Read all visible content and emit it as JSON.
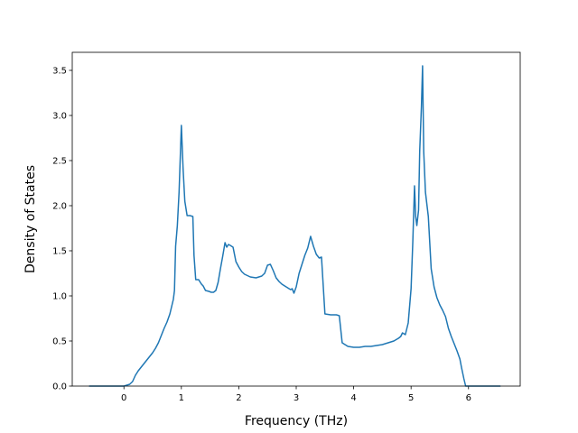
{
  "chart_data": {
    "type": "line",
    "title": "",
    "xlabel": "Frequency (THz)",
    "ylabel": "Density of States",
    "xlim": [
      -0.9,
      6.9
    ],
    "ylim": [
      0.0,
      3.7
    ],
    "xticks": [
      0,
      1,
      2,
      3,
      4,
      5,
      6
    ],
    "xtick_labels": [
      "0",
      "1",
      "2",
      "3",
      "4",
      "5",
      "6"
    ],
    "yticks": [
      0.0,
      0.5,
      1.0,
      1.5,
      2.0,
      2.5,
      3.0,
      3.5
    ],
    "ytick_labels": [
      "0.0",
      "0.5",
      "1.0",
      "1.5",
      "2.0",
      "2.5",
      "3.0",
      "3.5"
    ],
    "grid": false,
    "legend": "none",
    "series": [
      {
        "color": "#1f77b4",
        "x": [
          -0.6,
          -0.2,
          0.0,
          0.1,
          0.15,
          0.2,
          0.25,
          0.3,
          0.4,
          0.5,
          0.55,
          0.6,
          0.65,
          0.7,
          0.75,
          0.8,
          0.83,
          0.86,
          0.88,
          0.9,
          0.93,
          0.96,
          1.0,
          1.03,
          1.06,
          1.1,
          1.15,
          1.2,
          1.22,
          1.25,
          1.3,
          1.35,
          1.38,
          1.42,
          1.48,
          1.52,
          1.56,
          1.6,
          1.64,
          1.68,
          1.72,
          1.76,
          1.79,
          1.82,
          1.85,
          1.9,
          1.95,
          2.0,
          2.05,
          2.1,
          2.2,
          2.3,
          2.4,
          2.45,
          2.5,
          2.55,
          2.6,
          2.65,
          2.7,
          2.75,
          2.8,
          2.85,
          2.9,
          2.93,
          2.96,
          3.0,
          3.05,
          3.1,
          3.15,
          3.2,
          3.25,
          3.3,
          3.35,
          3.4,
          3.44,
          3.5,
          3.6,
          3.7,
          3.75,
          3.8,
          3.9,
          4.0,
          4.1,
          4.2,
          4.3,
          4.4,
          4.5,
          4.6,
          4.7,
          4.78,
          4.82,
          4.85,
          4.9,
          4.95,
          5.0,
          5.03,
          5.06,
          5.08,
          5.1,
          5.13,
          5.15,
          5.18,
          5.2,
          5.22,
          5.25,
          5.3,
          5.35,
          5.4,
          5.45,
          5.5,
          5.55,
          5.6,
          5.65,
          5.7,
          5.75,
          5.8,
          5.85,
          5.88,
          5.92,
          5.95,
          6.0,
          6.3,
          6.55
        ],
        "y": [
          0.0,
          0.0,
          0.0,
          0.02,
          0.05,
          0.12,
          0.17,
          0.21,
          0.29,
          0.37,
          0.42,
          0.48,
          0.56,
          0.64,
          0.71,
          0.8,
          0.88,
          0.96,
          1.06,
          1.55,
          1.78,
          2.15,
          2.89,
          2.41,
          2.05,
          1.89,
          1.89,
          1.88,
          1.45,
          1.18,
          1.18,
          1.13,
          1.11,
          1.06,
          1.05,
          1.04,
          1.04,
          1.06,
          1.15,
          1.3,
          1.44,
          1.59,
          1.54,
          1.57,
          1.56,
          1.54,
          1.38,
          1.32,
          1.27,
          1.24,
          1.21,
          1.2,
          1.22,
          1.25,
          1.34,
          1.35,
          1.28,
          1.2,
          1.16,
          1.13,
          1.11,
          1.09,
          1.07,
          1.08,
          1.03,
          1.1,
          1.25,
          1.35,
          1.45,
          1.53,
          1.66,
          1.55,
          1.46,
          1.42,
          1.43,
          0.8,
          0.79,
          0.79,
          0.78,
          0.48,
          0.44,
          0.43,
          0.43,
          0.44,
          0.44,
          0.45,
          0.46,
          0.48,
          0.5,
          0.53,
          0.55,
          0.59,
          0.57,
          0.7,
          1.08,
          1.6,
          2.22,
          1.88,
          1.78,
          1.95,
          2.6,
          3.1,
          3.55,
          2.6,
          2.15,
          1.88,
          1.3,
          1.1,
          0.98,
          0.9,
          0.84,
          0.77,
          0.64,
          0.55,
          0.47,
          0.39,
          0.3,
          0.2,
          0.08,
          0.0,
          0.0,
          0.0,
          0.0
        ]
      }
    ]
  }
}
